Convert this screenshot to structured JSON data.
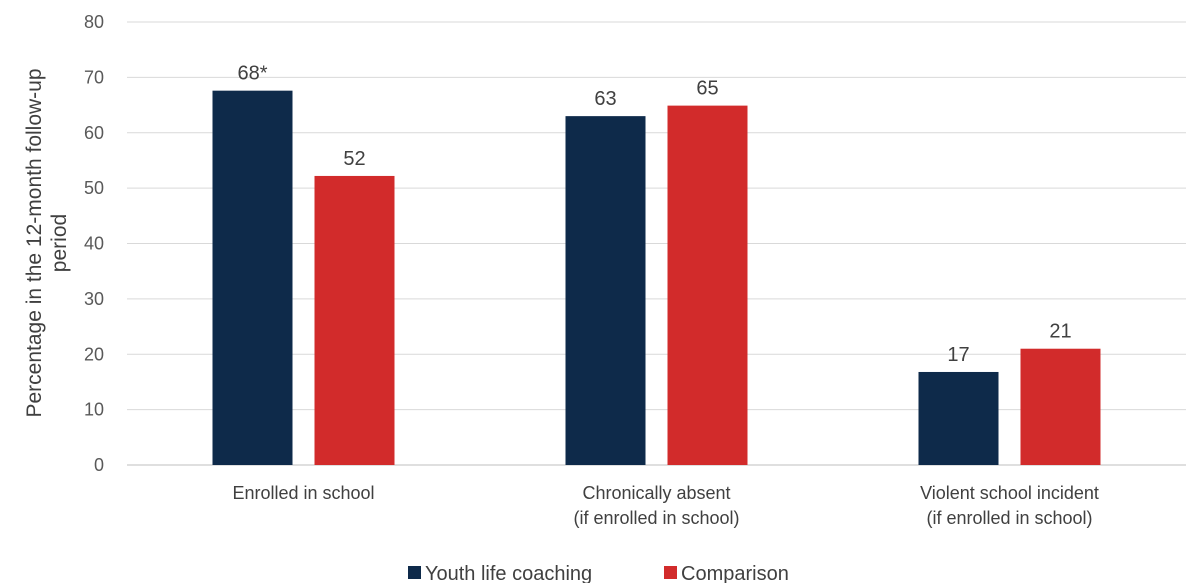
{
  "chart_data": {
    "type": "bar",
    "categories": [
      [
        "Enrolled in school"
      ],
      [
        "Chronically absent",
        "(if enrolled in school)"
      ],
      [
        "Violent school incident",
        "(if enrolled in school)"
      ]
    ],
    "series": [
      {
        "name": "Youth life coaching",
        "color": "#0e2a4a",
        "values": [
          67.6,
          63.0,
          16.8
        ],
        "labels": [
          "68*",
          "63",
          "17"
        ]
      },
      {
        "name": "Comparison",
        "color": "#d22b2b",
        "values": [
          52.2,
          64.9,
          21.0
        ],
        "labels": [
          "52",
          "65",
          "21"
        ]
      }
    ],
    "ylabel": [
      "Percentage in the 12-month follow-up",
      "period"
    ],
    "ylim": [
      0,
      80
    ],
    "yticks": [
      0,
      10,
      20,
      30,
      40,
      50,
      60,
      70,
      80
    ],
    "grid": true,
    "legend_position": "bottom"
  }
}
